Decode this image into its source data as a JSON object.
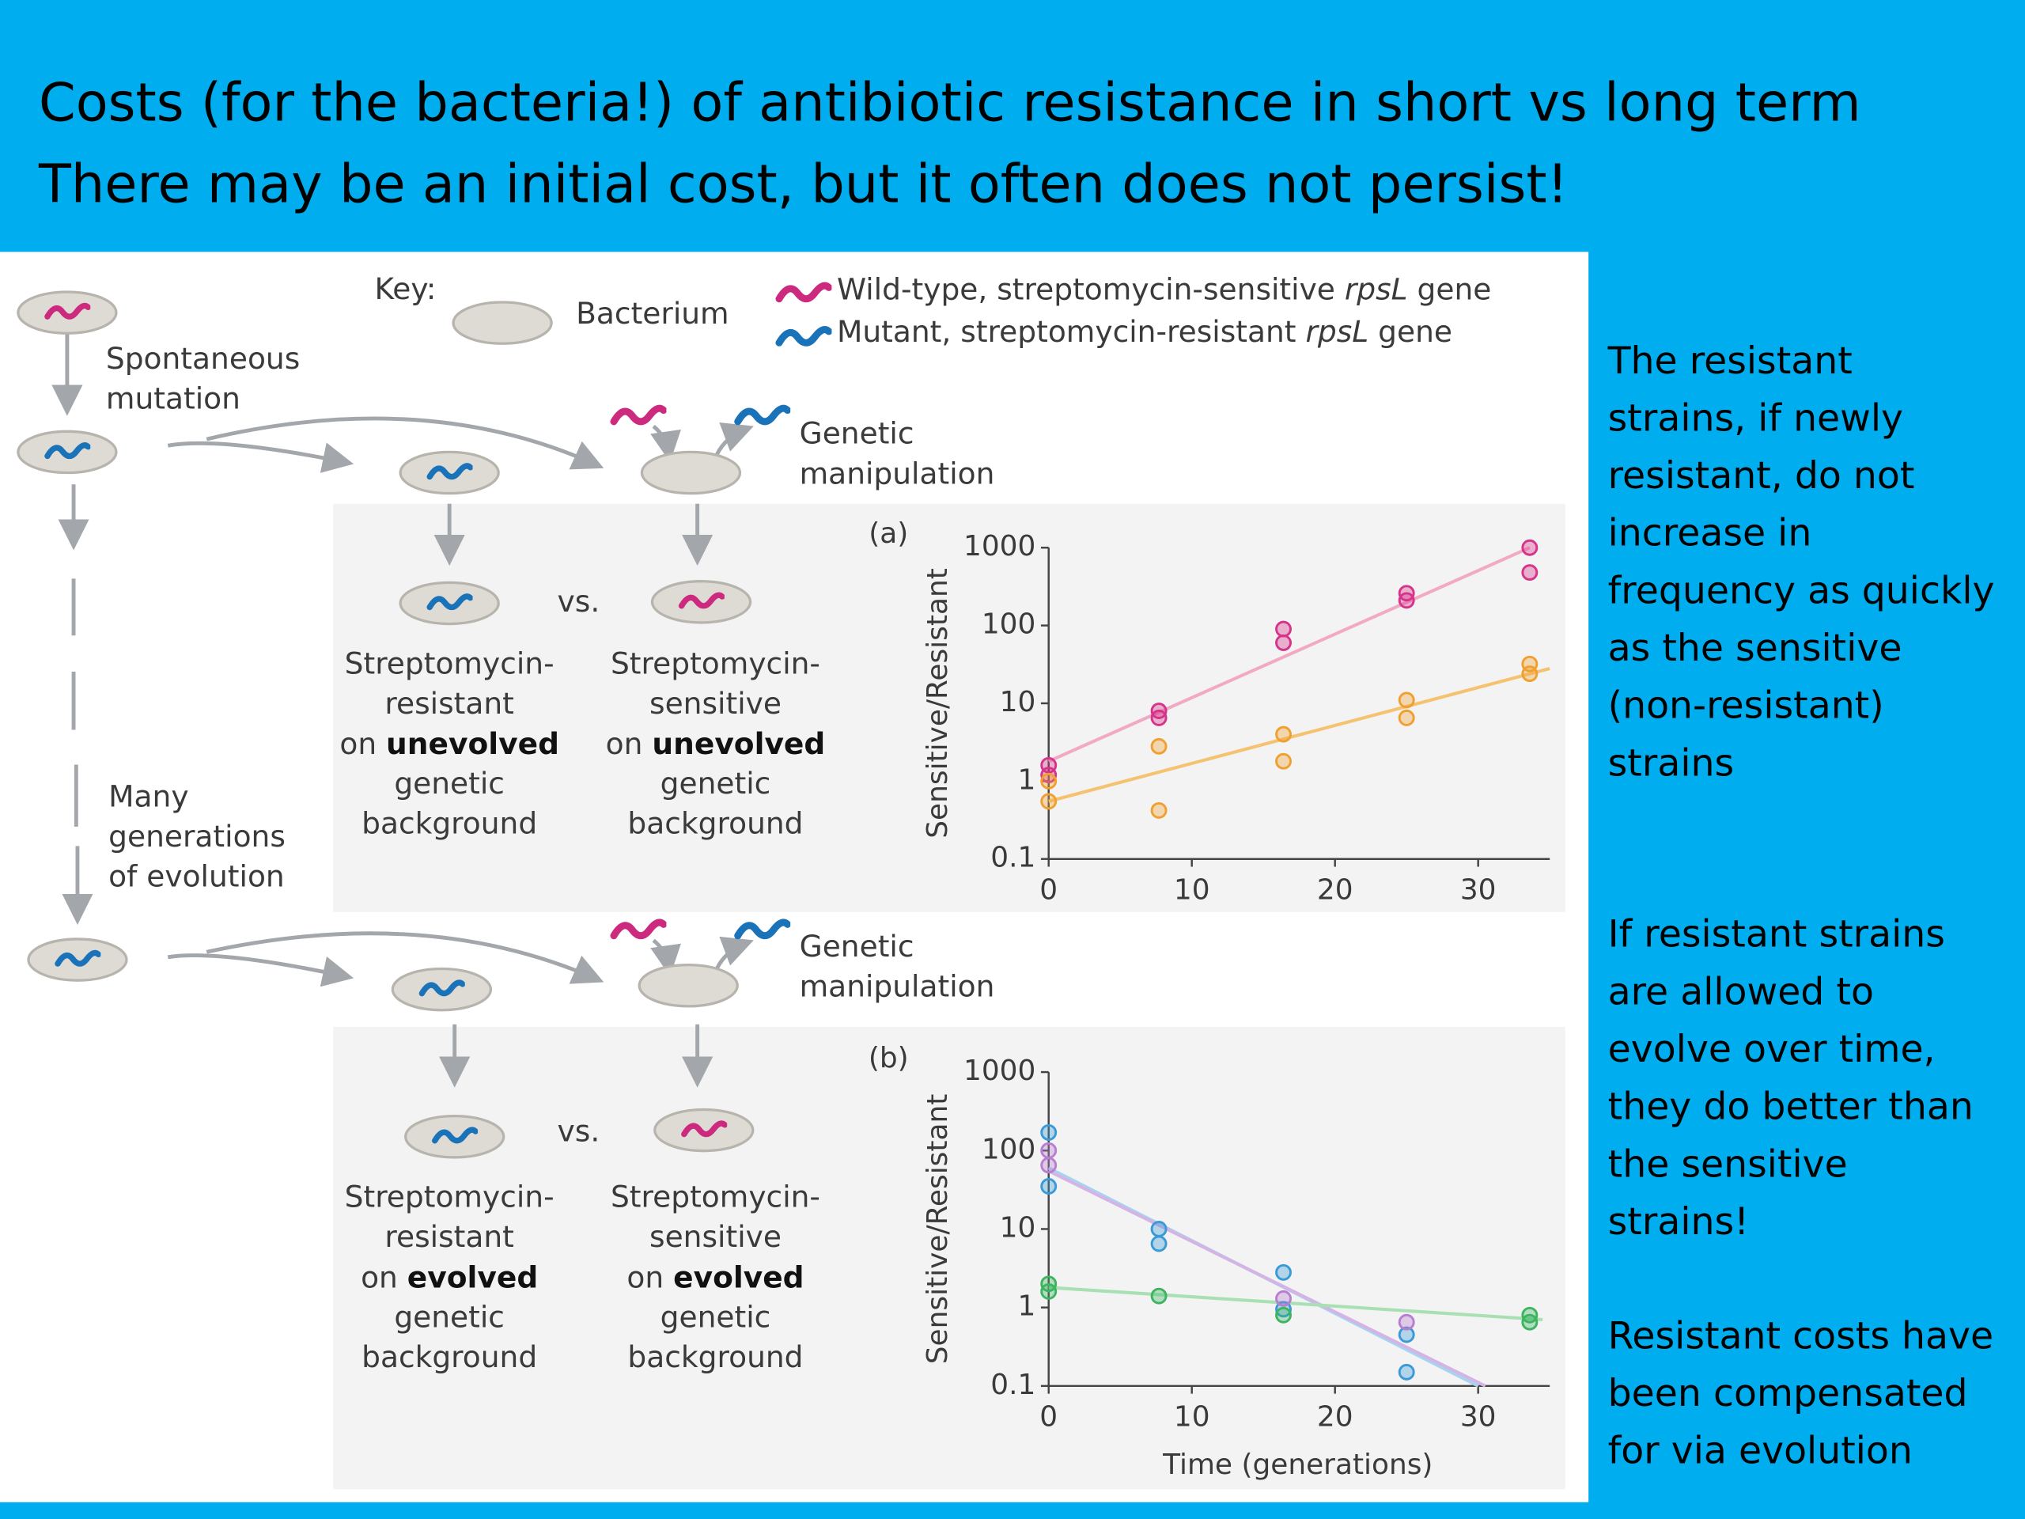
{
  "header": {
    "lines": [
      "Costs (for the bacteria!) of antibiotic resistance in short vs long term",
      "There may be an initial cost, but it often does not persist!"
    ]
  },
  "diagram": {
    "key_label": "Key:",
    "bacterium_label": "Bacterium",
    "legend": [
      [
        "Wild-type, streptomycin-sensitive ",
        "rpsL",
        " gene"
      ],
      [
        "Mutant, streptomycin-resistant ",
        "rpsL",
        " gene"
      ]
    ],
    "spontaneous": [
      "Spontaneous",
      "mutation"
    ],
    "evolution": [
      "Many",
      "generations",
      "of evolution"
    ],
    "panels": [
      {
        "manipulation": [
          "Genetic",
          "manipulation"
        ],
        "vs": "vs.",
        "left": {
          "top": [
            "Streptomycin-",
            "resistant"
          ],
          "on": "on ",
          "bold": "unevolved",
          "rest": [
            "genetic",
            "background"
          ]
        },
        "right": {
          "top": [
            "Streptomycin-",
            "sensitive"
          ],
          "on": "on ",
          "bold": "unevolved",
          "rest": [
            "genetic",
            "background"
          ]
        }
      },
      {
        "manipulation": [
          "Genetic",
          "manipulation"
        ],
        "vs": "vs.",
        "left": {
          "top": [
            "Streptomycin-",
            "resistant"
          ],
          "on": "on ",
          "bold": "evolved",
          "rest": [
            "genetic",
            "background"
          ]
        },
        "right": {
          "top": [
            "Streptomycin-",
            "sensitive"
          ],
          "on": "on ",
          "bold": "evolved",
          "rest": [
            "genetic",
            "background"
          ]
        }
      }
    ]
  },
  "chart_data": [
    {
      "type": "scatter",
      "label": "(a)",
      "ylabel": "Sensitive/Resistant",
      "log_y": true,
      "xlim": [
        0,
        35
      ],
      "ylim": [
        0.1,
        1000
      ],
      "xticks": [
        0,
        10,
        20,
        30
      ],
      "yticks": [
        0.1,
        1,
        10,
        100,
        1000
      ],
      "series": [
        {
          "color": "#d6348a",
          "x": [
            0,
            0,
            7.7,
            7.7,
            16.4,
            16.4,
            25,
            25,
            33.6,
            33.6
          ],
          "values": [
            1.6,
            1.2,
            8,
            6.5,
            90,
            60,
            260,
            210,
            1000,
            480
          ]
        },
        {
          "color": "#f0a030",
          "x": [
            0,
            0,
            7.7,
            7.7,
            16.4,
            16.4,
            25,
            25,
            33.6,
            33.6
          ],
          "values": [
            1,
            0.55,
            2.8,
            0.42,
            4,
            1.8,
            11,
            6.5,
            32,
            24
          ]
        }
      ],
      "fit_lines": [
        {
          "color": "#f2aac4",
          "x": [
            0,
            33.6
          ],
          "values": [
            1.8,
            1000
          ]
        },
        {
          "color": "#f5c270",
          "x": [
            0,
            35
          ],
          "values": [
            0.55,
            28
          ]
        }
      ]
    },
    {
      "type": "scatter",
      "label": "(b)",
      "ylabel": "Sensitive/Resistant",
      "xlabel": "Time (generations)",
      "log_y": true,
      "xlim": [
        0,
        35
      ],
      "ylim": [
        0.1,
        1000
      ],
      "xticks": [
        0,
        10,
        20,
        30
      ],
      "yticks": [
        0.1,
        1,
        10,
        100,
        1000
      ],
      "series": [
        {
          "color": "#3a9ad8",
          "x": [
            0,
            0,
            7.7,
            7.7,
            16.4,
            16.4,
            25,
            25
          ],
          "values": [
            170,
            35,
            10,
            6.5,
            2.8,
            0.95,
            0.45,
            0.15
          ]
        },
        {
          "color": "#b67fd0",
          "x": [
            0,
            0,
            16.4,
            25
          ],
          "values": [
            100,
            65,
            1.3,
            0.65
          ]
        },
        {
          "color": "#3cb460",
          "x": [
            0,
            0,
            7.7,
            16.4,
            33.6,
            33.6
          ],
          "values": [
            2,
            1.6,
            1.4,
            0.8,
            0.8,
            0.65
          ]
        }
      ],
      "fit_lines": [
        {
          "color": "#a8d2f0",
          "x": [
            0,
            30
          ],
          "values": [
            60,
            0.1
          ]
        },
        {
          "color": "#d4b4e4",
          "x": [
            0,
            30.5
          ],
          "values": [
            55,
            0.1
          ]
        },
        {
          "color": "#a8e0b4",
          "x": [
            0,
            34.5
          ],
          "values": [
            1.8,
            0.7
          ]
        }
      ]
    }
  ],
  "sidebar": {
    "paragraphs": [
      [
        "The resistant",
        "strains, if newly",
        "resistant, do not",
        "increase in",
        "frequency as quickly",
        "as the sensitive",
        "(non-resistant)",
        "strains"
      ],
      [
        "If resistant strains",
        "are allowed to",
        "evolve over time,",
        "they do better than",
        "the sensitive",
        "strains!"
      ],
      [
        "Resistant costs have",
        "been compensated",
        "for via evolution"
      ]
    ]
  }
}
